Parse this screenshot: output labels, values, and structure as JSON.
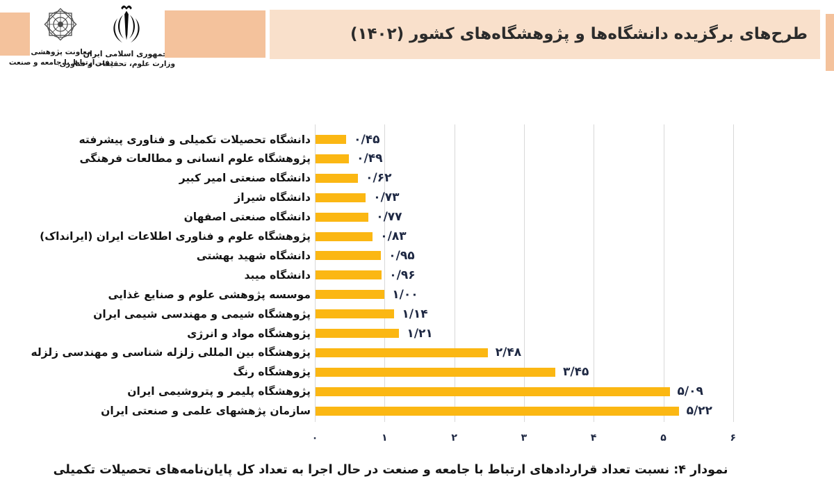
{
  "header": {
    "title": "طرح‌های برگزیده دانشگاه‌ها و پژوهشگاه‌های کشور (۱۴۰۲)",
    "left_seal_caption_line1": "معاونت پژوهشی",
    "left_seal_caption_line2": "دفتر ارتباط با جامعه و صنعت",
    "emblem_caption_line1": "جمهوری اسلامی ایران",
    "emblem_caption_line2": "وزارت علوم، تحقیقات و فناوری"
  },
  "chart_data": {
    "type": "bar",
    "orientation": "horizontal",
    "title": "",
    "xlabel": "",
    "ylabel": "",
    "xlim": [
      0,
      6
    ],
    "grid": true,
    "legend": "none",
    "bar_color": "#FBB713",
    "x_ticks": [
      {
        "value": 0,
        "label": "۰"
      },
      {
        "value": 1,
        "label": "۱"
      },
      {
        "value": 2,
        "label": "۲"
      },
      {
        "value": 3,
        "label": "۳"
      },
      {
        "value": 4,
        "label": "۴"
      },
      {
        "value": 5,
        "label": "۵"
      },
      {
        "value": 6,
        "label": "۶"
      }
    ],
    "categories": [
      "دانشگاه تحصیلات تکمیلی و فناوری پیشرفته",
      "پژوهشگاه علوم انسانی و مطالعات فرهنگی",
      "دانشگاه صنعتی امیر کبیر",
      "دانشگاه شیراز",
      "دانشگاه صنعتی اصفهان",
      "پژوهشگاه علوم و فناوری اطلاعات ایران (ایرانداک)",
      "دانشگاه شهید بهشتی",
      "دانشگاه میبد",
      "موسسه پژوهشی علوم و صنایع غذایی",
      "پژوهشگاه شیمی و مهندسی شیمی ایران",
      "پژوهشگاه مواد و انرژی",
      "پژوهشگاه بین المللی زلزله شناسی و مهندسی زلزله",
      "پژوهشگاه رنگ",
      "پژوهشگاه پلیمر و پتروشیمی ایران",
      "سازمان پژهشهای علمی و صنعتی ایران"
    ],
    "values": [
      0.45,
      0.49,
      0.62,
      0.73,
      0.77,
      0.83,
      0.95,
      0.96,
      1.0,
      1.14,
      1.21,
      2.48,
      3.45,
      5.09,
      5.22
    ],
    "value_labels": [
      "۰/۴۵",
      "۰/۴۹",
      "۰/۶۲",
      "۰/۷۳",
      "۰/۷۷",
      "۰/۸۳",
      "۰/۹۵",
      "۰/۹۶",
      "۱/۰۰",
      "۱/۱۴",
      "۱/۲۱",
      "۲/۴۸",
      "۳/۴۵",
      "۵/۰۹",
      "۵/۲۲"
    ]
  },
  "caption": {
    "text": "نمودار ۴: نسبت تعداد قراردادهای ارتباط با جامعه و صنعت در حال اجرا به تعداد کل پایان‌نامه‌های تحصیلات تکمیلی"
  },
  "colors": {
    "peach_dark": "#F4C29C",
    "peach_light": "#F9E0CB",
    "bar": "#FBB713",
    "value_text": "#1d2742",
    "grid": "#d8d8d8"
  }
}
